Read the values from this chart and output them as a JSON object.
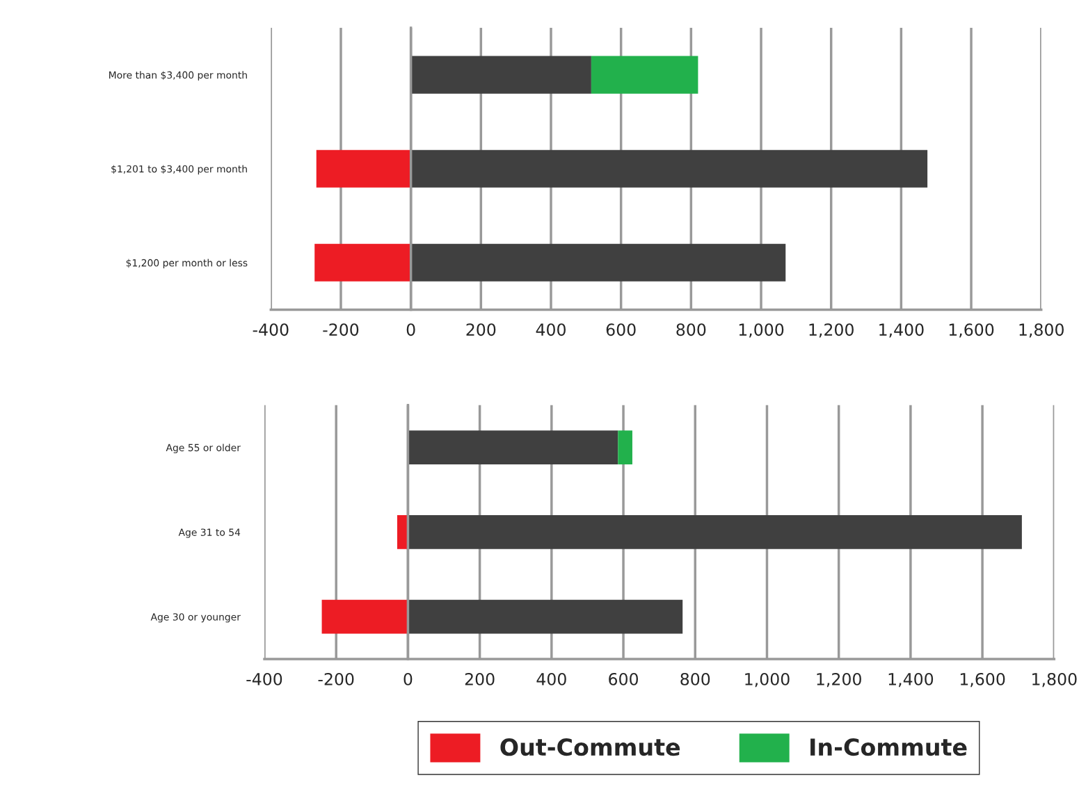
{
  "chart_data": [
    {
      "type": "bar",
      "orientation": "horizontal",
      "stacked": true,
      "categories": [
        "More than $3,400 per month",
        "$1,201 to $3,400 per month",
        "$1,200 per month or less"
      ],
      "series": [
        {
          "color": "#404040",
          "values": [
            515,
            1475,
            1070
          ]
        },
        {
          "color": "#ed1c24",
          "values": [
            null,
            -270,
            -275
          ]
        },
        {
          "color": "#22b14c",
          "values": [
            305,
            null,
            null
          ]
        }
      ],
      "xlim": [
        -400,
        1800
      ],
      "xticks": [
        -400,
        -200,
        0,
        200,
        400,
        600,
        800,
        {
          "value": 1000,
          "label": "1,000"
        },
        {
          "value": 1200,
          "label": "1,200"
        },
        {
          "value": 1400,
          "label": "1,400"
        },
        {
          "value": 1600,
          "label": "1,600"
        },
        {
          "value": 1800,
          "label": "1,800"
        }
      ],
      "grid": "x",
      "legend": false
    },
    {
      "type": "bar",
      "orientation": "horizontal",
      "stacked": true,
      "categories": [
        "Age 55 or older",
        "Age 31 to 54",
        "Age 30 or younger"
      ],
      "series": [
        {
          "color": "#404040",
          "values": [
            585,
            1710,
            765
          ]
        },
        {
          "name": "Out-Commute",
          "color": "#ed1c24",
          "values": [
            null,
            -30,
            -240
          ]
        },
        {
          "name": "In-Commute",
          "color": "#22b14c",
          "values": [
            40,
            null,
            null
          ]
        }
      ],
      "xlim": [
        -400,
        1800
      ],
      "xticks": [
        -400,
        -200,
        0,
        200,
        400,
        600,
        800,
        {
          "value": 1000,
          "label": "1,000"
        },
        {
          "value": 1200,
          "label": "1,200"
        },
        {
          "value": 1400,
          "label": "1,400"
        },
        {
          "value": 1600,
          "label": "1,600"
        },
        {
          "value": 1800,
          "label": "1,800"
        }
      ],
      "grid": "x",
      "legend": "bottom"
    }
  ]
}
